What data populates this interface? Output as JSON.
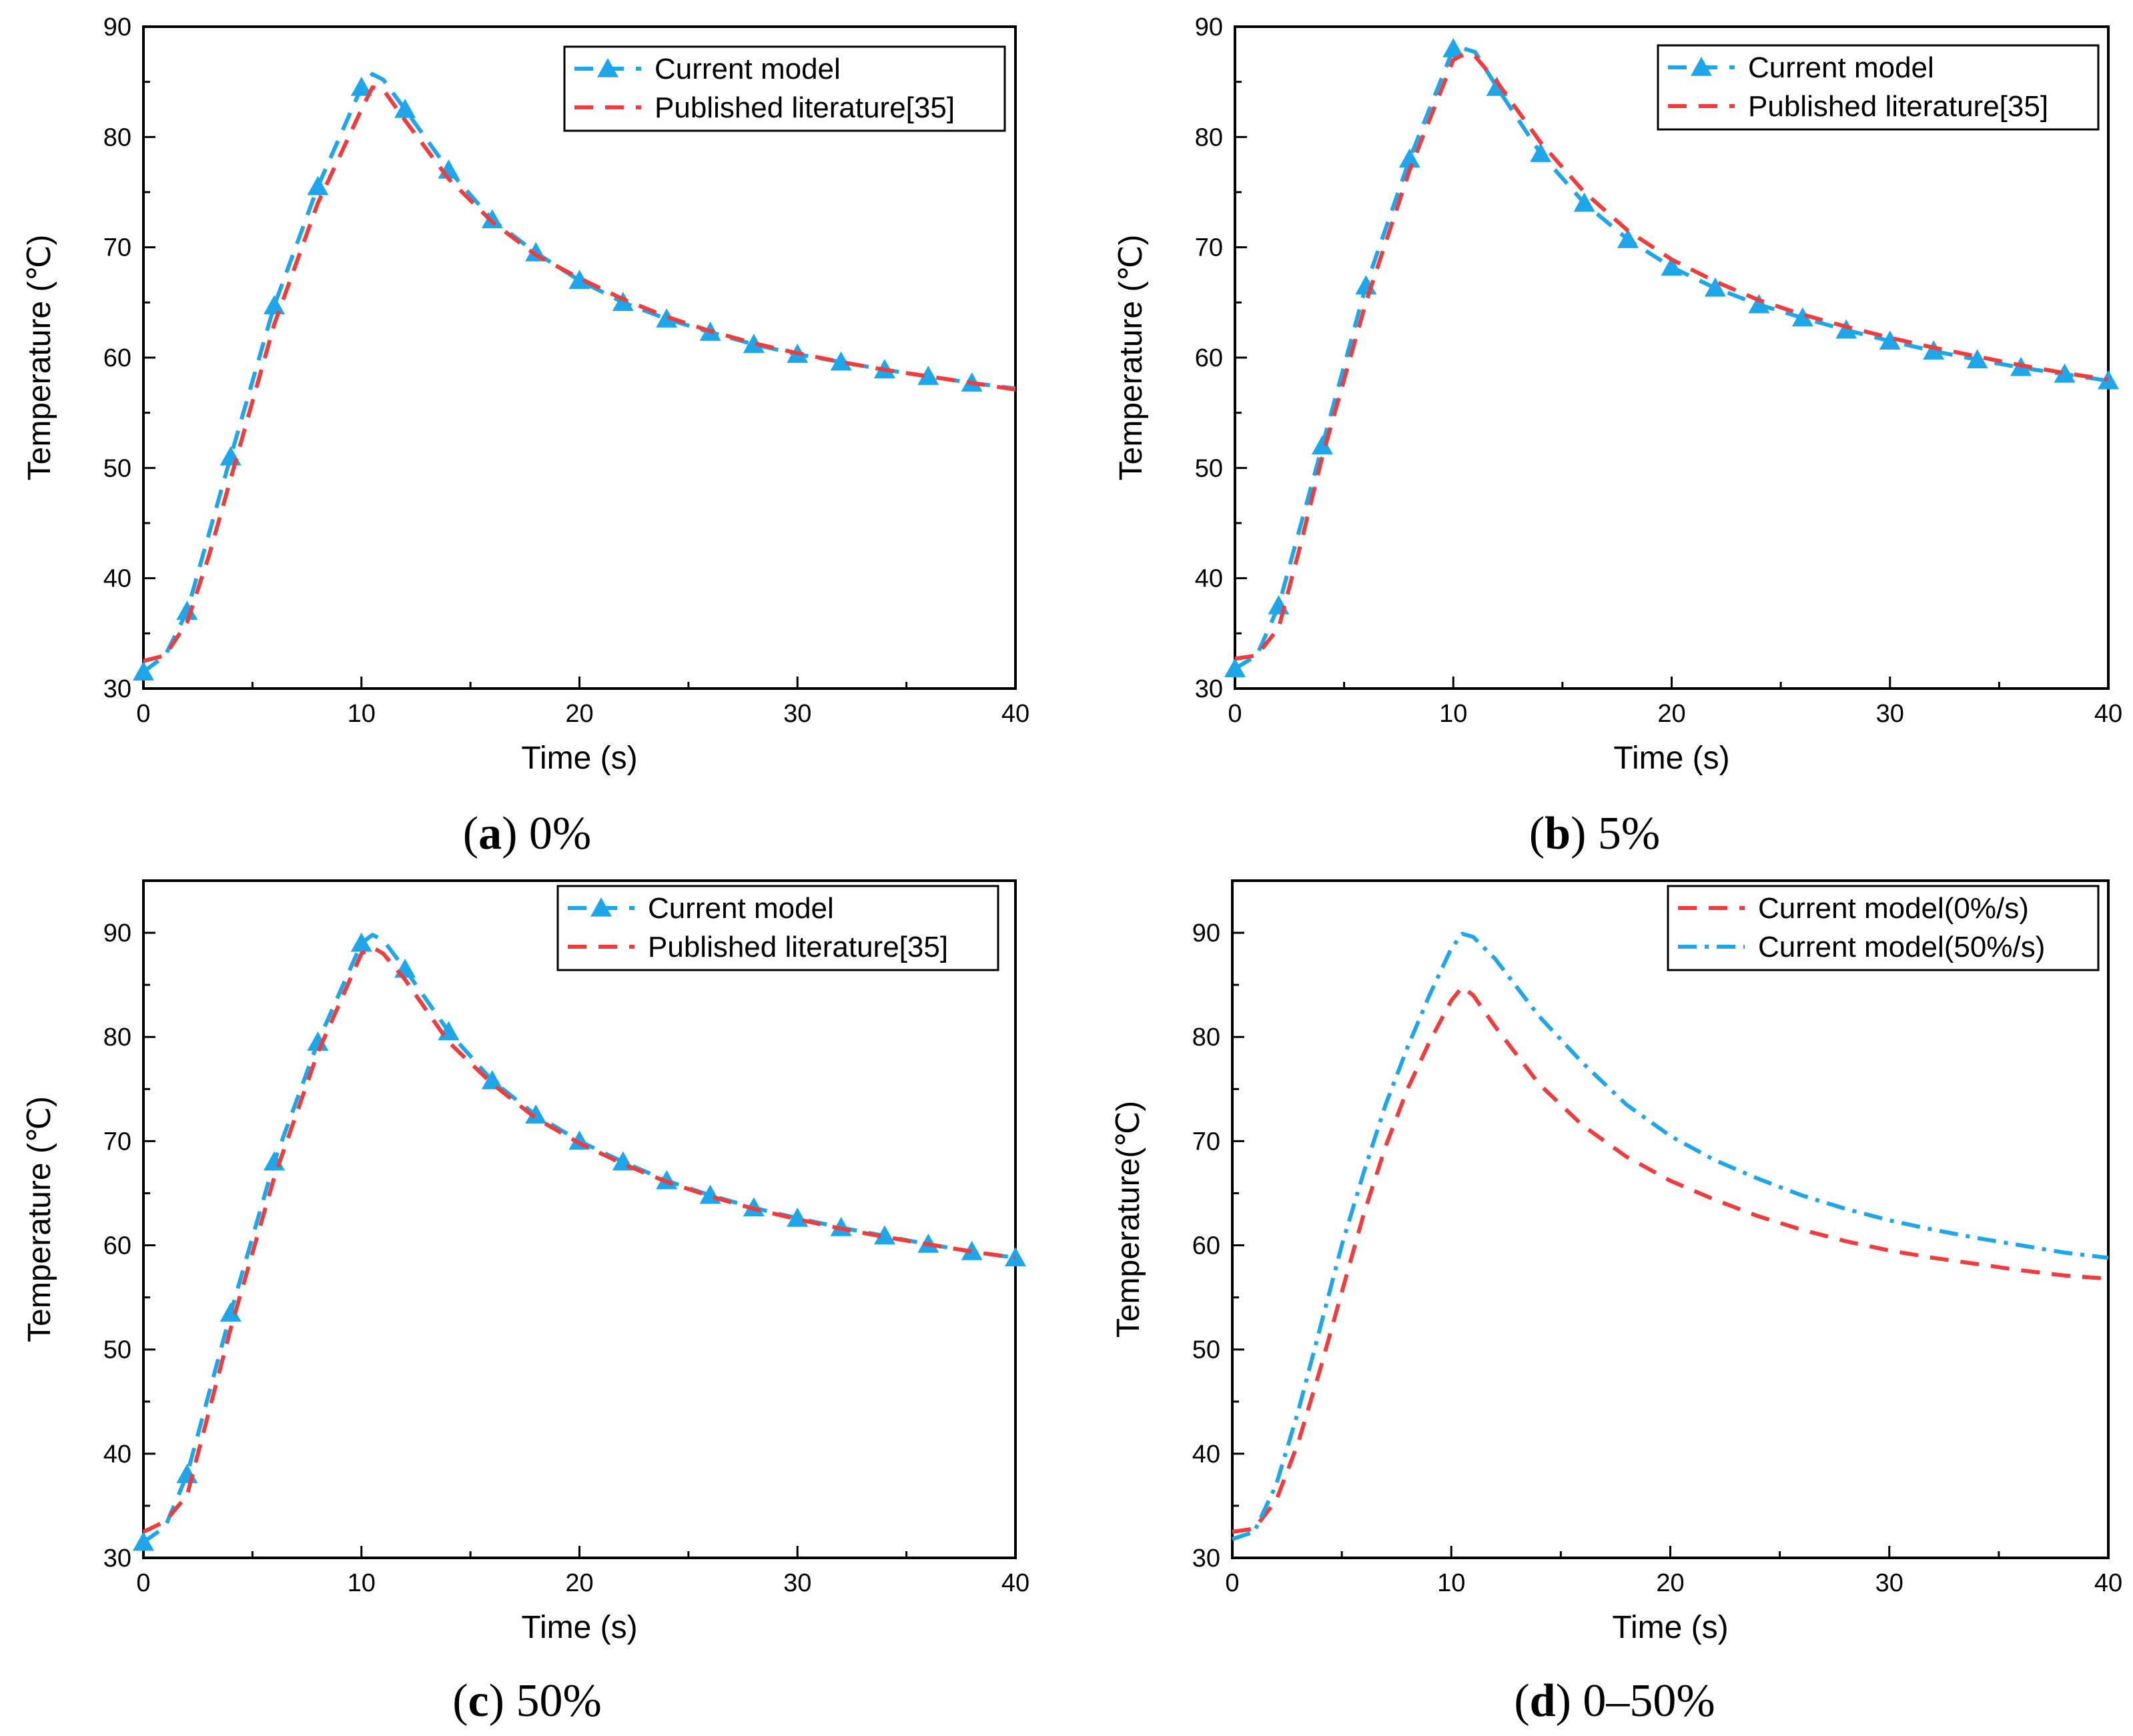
{
  "figure": {
    "captions": [
      {
        "letter": "a",
        "text": "0%"
      },
      {
        "letter": "b",
        "text": "5%"
      },
      {
        "letter": "c",
        "text": "50%"
      },
      {
        "letter": "d",
        "text": "0–50%"
      }
    ]
  },
  "colors": {
    "blue": "#1ea6ea",
    "red": "#f03c3c",
    "axis": "#000000"
  },
  "chart_data": [
    {
      "id": "a",
      "type": "line",
      "caption": "(a) 0%",
      "xlabel": "Time (s)",
      "ylabel": "Temperature (℃)",
      "xlim": [
        0,
        40
      ],
      "ylim": [
        30,
        90
      ],
      "xticks": [
        0,
        10,
        20,
        30,
        40
      ],
      "yticks": [
        30,
        40,
        50,
        60,
        70,
        80,
        90
      ],
      "legend_position": "top-right",
      "series": [
        {
          "name": "Current model",
          "style": "dashed-triangle",
          "color": "#1ea6ea",
          "x": [
            0,
            1,
            2,
            4,
            6,
            8,
            10,
            10.5,
            11,
            12,
            14,
            16,
            18,
            20,
            22,
            24,
            26,
            28,
            30,
            32,
            34,
            36,
            38,
            40
          ],
          "y": [
            31.5,
            33,
            37,
            51,
            64.7,
            75.5,
            84.5,
            85.7,
            85.2,
            82.5,
            77,
            72.5,
            69.5,
            67,
            65,
            63.5,
            62.3,
            61.2,
            60.3,
            59.6,
            58.9,
            58.3,
            57.7,
            57.2
          ],
          "marker_x": [
            0,
            2,
            4,
            6,
            8,
            10,
            12,
            14,
            16,
            18,
            20,
            22,
            24,
            26,
            28,
            30,
            32,
            34,
            36,
            38
          ]
        },
        {
          "name": "Published literature[35]",
          "style": "dashed",
          "color": "#f03c3c",
          "x": [
            0,
            1,
            2,
            3,
            4,
            6,
            8,
            10,
            10.5,
            11,
            12,
            14,
            16,
            18,
            20,
            22,
            24,
            26,
            28,
            30,
            32,
            34,
            36,
            38,
            40
          ],
          "y": [
            32.5,
            33,
            36,
            42,
            49,
            63,
            74,
            82.5,
            84.5,
            84.3,
            81.5,
            76.2,
            72.3,
            69.3,
            67.2,
            65.3,
            63.7,
            62.4,
            61.3,
            60.4,
            59.6,
            58.9,
            58.3,
            57.7,
            57.1
          ]
        }
      ]
    },
    {
      "id": "b",
      "type": "line",
      "caption": "(b) 5%",
      "xlabel": "Time (s)",
      "ylabel": "Temperature (℃)",
      "xlim": [
        0,
        40
      ],
      "ylim": [
        30,
        90
      ],
      "xticks": [
        0,
        10,
        20,
        30,
        40
      ],
      "yticks": [
        30,
        40,
        50,
        60,
        70,
        80,
        90
      ],
      "legend_position": "top-right",
      "series": [
        {
          "name": "Current model",
          "style": "dashed-triangle",
          "color": "#1ea6ea",
          "x": [
            0,
            1,
            2,
            4,
            6,
            8,
            10,
            10.5,
            11,
            12,
            14,
            16,
            18,
            20,
            22,
            24,
            26,
            28,
            30,
            32,
            34,
            36,
            38,
            40
          ],
          "y": [
            31.8,
            33,
            37.5,
            52,
            66.5,
            78,
            88,
            88,
            87.7,
            84.5,
            78.5,
            74,
            70.7,
            68.2,
            66.3,
            64.8,
            63.6,
            62.5,
            61.5,
            60.6,
            59.8,
            59.1,
            58.5,
            57.9
          ],
          "marker_x": [
            0,
            2,
            4,
            6,
            8,
            10,
            12,
            14,
            16,
            18,
            20,
            22,
            24,
            26,
            28,
            30,
            32,
            34,
            36,
            38,
            40
          ]
        },
        {
          "name": "Published literature[35]",
          "style": "dashed",
          "color": "#f03c3c",
          "x": [
            0,
            1,
            2,
            3,
            4,
            6,
            8,
            10,
            10.5,
            11,
            12,
            14,
            16,
            18,
            20,
            22,
            24,
            26,
            28,
            30,
            32,
            34,
            36,
            38,
            40
          ],
          "y": [
            32.7,
            33,
            35.5,
            43,
            51,
            65,
            77,
            87,
            87.5,
            87.3,
            85,
            79.5,
            75,
            71.5,
            68.9,
            66.9,
            65.2,
            63.9,
            62.8,
            61.8,
            60.9,
            60.1,
            59.3,
            58.6,
            58
          ]
        }
      ]
    },
    {
      "id": "c",
      "type": "line",
      "caption": "(c) 50%",
      "xlabel": "Time (s)",
      "ylabel": "Temperature (℃)",
      "xlim": [
        0,
        40
      ],
      "ylim": [
        30,
        95
      ],
      "xticks": [
        0,
        10,
        20,
        30,
        40
      ],
      "yticks": [
        30,
        40,
        50,
        60,
        70,
        80,
        90
      ],
      "legend_position": "top-right",
      "series": [
        {
          "name": "Current model",
          "style": "dashed-triangle",
          "color": "#1ea6ea",
          "x": [
            0,
            1,
            2,
            4,
            6,
            8,
            10,
            10.5,
            11,
            12,
            14,
            16,
            18,
            20,
            22,
            24,
            26,
            28,
            30,
            32,
            34,
            36,
            38,
            40
          ],
          "y": [
            31.5,
            33,
            38,
            53.5,
            68,
            79.5,
            89,
            89.8,
            89.3,
            86.5,
            80.5,
            75.8,
            72.5,
            70,
            68,
            66.2,
            64.8,
            63.6,
            62.6,
            61.7,
            60.9,
            60.1,
            59.4,
            58.8
          ],
          "marker_x": [
            0,
            2,
            4,
            6,
            8,
            10,
            12,
            14,
            16,
            18,
            20,
            22,
            24,
            26,
            28,
            30,
            32,
            34,
            36,
            38,
            40
          ]
        },
        {
          "name": "Published literature[35]",
          "style": "dashed",
          "color": "#f03c3c",
          "x": [
            0,
            1,
            2,
            3,
            4,
            6,
            8,
            10,
            10.5,
            11,
            12,
            14,
            16,
            18,
            20,
            22,
            24,
            26,
            28,
            30,
            32,
            34,
            36,
            38,
            40
          ],
          "y": [
            32.5,
            33.5,
            36,
            44,
            52,
            66.5,
            78.5,
            88,
            88.6,
            88,
            85.5,
            79.5,
            75.5,
            72.2,
            69.8,
            67.8,
            66.1,
            64.7,
            63.5,
            62.5,
            61.6,
            60.8,
            60.1,
            59.4,
            58.8
          ]
        }
      ]
    },
    {
      "id": "d",
      "type": "line",
      "caption": "(d) 0–50%",
      "xlabel": "Time (s)",
      "ylabel": "Temperature(℃)",
      "xlim": [
        0,
        40
      ],
      "ylim": [
        30,
        95
      ],
      "xticks": [
        0,
        10,
        20,
        30,
        40
      ],
      "yticks": [
        30,
        40,
        50,
        60,
        70,
        80,
        90
      ],
      "legend_position": "top-right",
      "series": [
        {
          "name": "Current model(0%/s)",
          "style": "dashed",
          "color": "#f03c3c",
          "x": [
            0,
            1,
            2,
            3,
            4,
            5,
            6,
            7,
            8,
            9,
            10,
            10.5,
            11,
            12,
            14,
            16,
            18,
            20,
            22,
            24,
            26,
            28,
            30,
            32,
            34,
            36,
            38,
            40
          ],
          "y": [
            32.5,
            32.8,
            35.5,
            41,
            48,
            55.5,
            63,
            69.5,
            75,
            79.5,
            83.5,
            84.8,
            84,
            81,
            75.5,
            71.5,
            68.5,
            66.2,
            64.4,
            62.8,
            61.5,
            60.4,
            59.5,
            58.8,
            58.2,
            57.6,
            57.1,
            56.8
          ]
        },
        {
          "name": "Current model(50%/s)",
          "style": "dashdot",
          "color": "#1ea6ea",
          "x": [
            0,
            1,
            2,
            3,
            4,
            5,
            6,
            7,
            8,
            9,
            10,
            10.5,
            11,
            12,
            14,
            16,
            18,
            20,
            22,
            24,
            26,
            28,
            30,
            32,
            34,
            36,
            38,
            40
          ],
          "y": [
            31.8,
            32.5,
            37,
            44,
            52,
            60,
            67,
            73.5,
            79,
            84,
            88.5,
            89.9,
            89.6,
            87.5,
            82,
            77.5,
            73.5,
            70.5,
            68.2,
            66.4,
            64.8,
            63.5,
            62.4,
            61.5,
            60.7,
            60,
            59.3,
            58.8
          ]
        }
      ]
    }
  ]
}
